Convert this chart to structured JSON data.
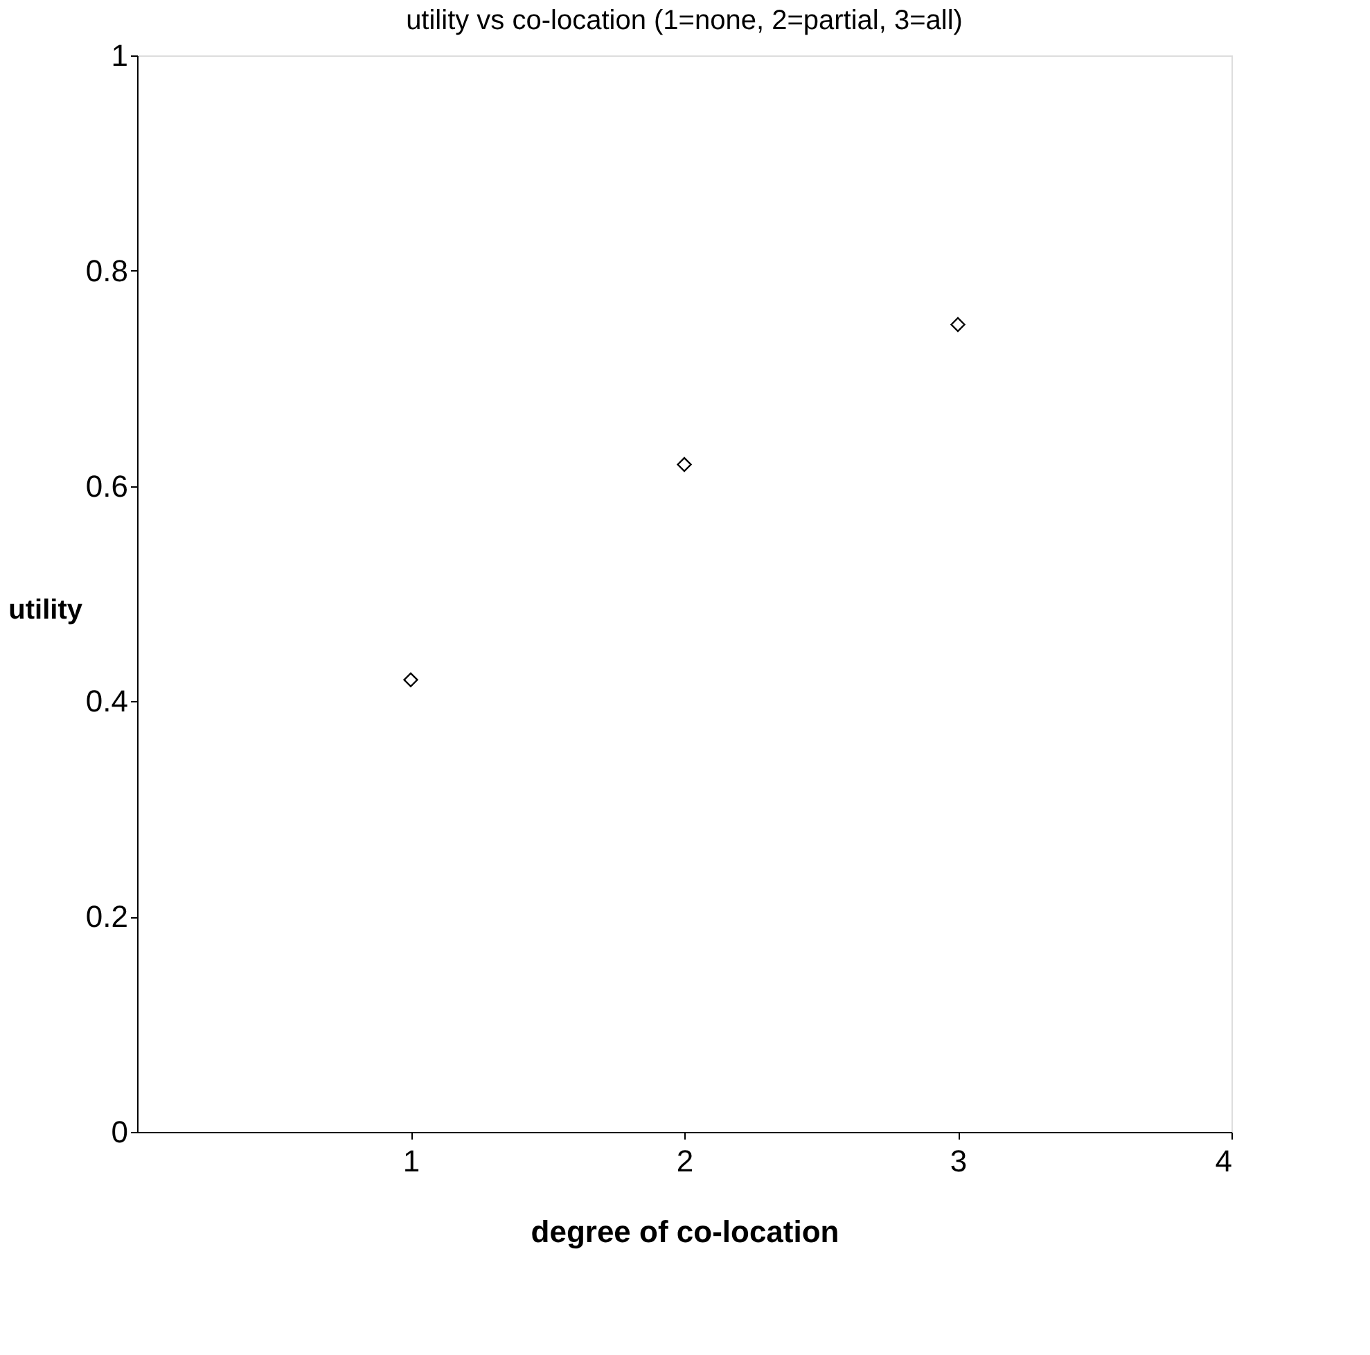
{
  "chart_data": {
    "type": "scatter",
    "title": "utility vs co-location (1=none, 2=partial, 3=all)",
    "xlabel": "degree of co-location",
    "ylabel": "utility",
    "x": [
      1,
      2,
      3
    ],
    "series": [
      {
        "color": "#000000",
        "values": [
          0.42,
          0.62,
          0.75
        ]
      }
    ],
    "xlim": [
      0,
      4
    ],
    "xticks": [
      1,
      2,
      3,
      4
    ],
    "ylim": [
      0,
      1
    ],
    "yticks": [
      0,
      0.2,
      0.4,
      0.6,
      0.8,
      1
    ],
    "marker": "diamond",
    "grid": false,
    "legend": false
  }
}
